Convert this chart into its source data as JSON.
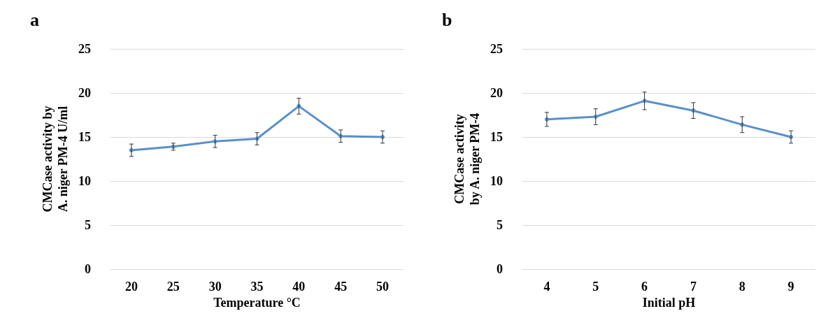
{
  "chart_data": [
    {
      "type": "line",
      "title": "a",
      "xlabel": "Temperature °C",
      "ylabel": "CMCase activity by A. niger PM-4 U/ml",
      "categories": [
        "20",
        "25",
        "30",
        "35",
        "40",
        "45",
        "50"
      ],
      "series": [
        {
          "color": "#5b8fc9",
          "values": [
            13.5,
            13.9,
            14.5,
            14.8,
            18.5,
            15.1,
            15.0
          ],
          "errors": [
            0.7,
            0.4,
            0.7,
            0.7,
            0.9,
            0.7,
            0.7
          ]
        }
      ],
      "ylim": [
        0,
        25
      ],
      "yticks": [
        0,
        5,
        10,
        15,
        20,
        25
      ],
      "grid": "y",
      "marker": "circle",
      "line_style": "solid"
    },
    {
      "type": "line",
      "title": "b",
      "xlabel": "Initial pH",
      "ylabel": "CMCase activity by A. niger PM-4",
      "categories": [
        "4",
        "5",
        "6",
        "7",
        "8",
        "9"
      ],
      "series": [
        {
          "color": "#5b8fc9",
          "values": [
            17.0,
            17.3,
            19.1,
            18.0,
            16.4,
            15.0
          ],
          "errors": [
            0.8,
            0.9,
            1.0,
            0.9,
            0.9,
            0.7
          ]
        }
      ],
      "ylim": [
        0,
        25
      ],
      "yticks": [
        0,
        5,
        10,
        15,
        20,
        25
      ],
      "grid": "y",
      "marker": "circle",
      "line_style": "solid"
    }
  ]
}
